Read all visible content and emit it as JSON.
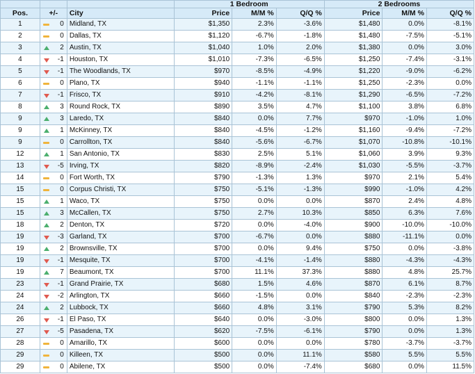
{
  "headers": {
    "pos": "Pos.",
    "change": "+/-",
    "city": "City",
    "group1": "1 Bedroom",
    "group2": "2 Bedrooms",
    "price": "Price",
    "mm": "M/M %",
    "qq": "Q/Q %"
  },
  "colors": {
    "header_bg": "#d6eaf8",
    "row_alt_bg": "#e8f4fb",
    "border": "#a9c3d6",
    "up": "#4caf6e",
    "down": "#e05a4f",
    "flat": "#f0b43c"
  },
  "rows": [
    {
      "pos": "1",
      "dir": "flat",
      "chg": "0",
      "city": "Midland, TX",
      "p1": "$1,350",
      "mm1": "2.3%",
      "qq1": "-3.6%",
      "p2": "$1,480",
      "mm2": "0.0%",
      "qq2": "-8.1%"
    },
    {
      "pos": "2",
      "dir": "flat",
      "chg": "0",
      "city": "Dallas, TX",
      "p1": "$1,120",
      "mm1": "-6.7%",
      "qq1": "-1.8%",
      "p2": "$1,480",
      "mm2": "-7.5%",
      "qq2": "-5.1%"
    },
    {
      "pos": "3",
      "dir": "up",
      "chg": "2",
      "city": "Austin, TX",
      "p1": "$1,040",
      "mm1": "1.0%",
      "qq1": "2.0%",
      "p2": "$1,380",
      "mm2": "0.0%",
      "qq2": "3.0%"
    },
    {
      "pos": "4",
      "dir": "down",
      "chg": "-1",
      "city": "Houston, TX",
      "p1": "$1,010",
      "mm1": "-7.3%",
      "qq1": "-6.5%",
      "p2": "$1,250",
      "mm2": "-7.4%",
      "qq2": "-3.1%"
    },
    {
      "pos": "5",
      "dir": "down",
      "chg": "-1",
      "city": "The Woodlands, TX",
      "p1": "$970",
      "mm1": "-8.5%",
      "qq1": "-4.9%",
      "p2": "$1,220",
      "mm2": "-9.0%",
      "qq2": "-6.2%"
    },
    {
      "pos": "6",
      "dir": "flat",
      "chg": "0",
      "city": "Plano, TX",
      "p1": "$940",
      "mm1": "-1.1%",
      "qq1": "-1.1%",
      "p2": "$1,250",
      "mm2": "-2.3%",
      "qq2": "0.0%"
    },
    {
      "pos": "7",
      "dir": "down",
      "chg": "-1",
      "city": "Frisco, TX",
      "p1": "$910",
      "mm1": "-4.2%",
      "qq1": "-8.1%",
      "p2": "$1,290",
      "mm2": "-6.5%",
      "qq2": "-7.2%"
    },
    {
      "pos": "8",
      "dir": "up",
      "chg": "3",
      "city": "Round Rock, TX",
      "p1": "$890",
      "mm1": "3.5%",
      "qq1": "4.7%",
      "p2": "$1,100",
      "mm2": "3.8%",
      "qq2": "6.8%"
    },
    {
      "pos": "9",
      "dir": "up",
      "chg": "3",
      "city": "Laredo, TX",
      "p1": "$840",
      "mm1": "0.0%",
      "qq1": "7.7%",
      "p2": "$970",
      "mm2": "-1.0%",
      "qq2": "1.0%"
    },
    {
      "pos": "9",
      "dir": "up",
      "chg": "1",
      "city": "McKinney, TX",
      "p1": "$840",
      "mm1": "-4.5%",
      "qq1": "-1.2%",
      "p2": "$1,160",
      "mm2": "-9.4%",
      "qq2": "-7.2%"
    },
    {
      "pos": "9",
      "dir": "flat",
      "chg": "0",
      "city": "Carrollton, TX",
      "p1": "$840",
      "mm1": "-5.6%",
      "qq1": "-6.7%",
      "p2": "$1,070",
      "mm2": "-10.8%",
      "qq2": "-10.1%"
    },
    {
      "pos": "12",
      "dir": "up",
      "chg": "1",
      "city": "San Antonio, TX",
      "p1": "$830",
      "mm1": "2.5%",
      "qq1": "5.1%",
      "p2": "$1,060",
      "mm2": "3.9%",
      "qq2": "9.3%"
    },
    {
      "pos": "13",
      "dir": "down",
      "chg": "-5",
      "city": "Irving, TX",
      "p1": "$820",
      "mm1": "-8.9%",
      "qq1": "-2.4%",
      "p2": "$1,030",
      "mm2": "-5.5%",
      "qq2": "-3.7%"
    },
    {
      "pos": "14",
      "dir": "flat",
      "chg": "0",
      "city": "Fort Worth, TX",
      "p1": "$790",
      "mm1": "-1.3%",
      "qq1": "1.3%",
      "p2": "$970",
      "mm2": "2.1%",
      "qq2": "5.4%"
    },
    {
      "pos": "15",
      "dir": "flat",
      "chg": "0",
      "city": "Corpus Christi, TX",
      "p1": "$750",
      "mm1": "-5.1%",
      "qq1": "-1.3%",
      "p2": "$990",
      "mm2": "-1.0%",
      "qq2": "4.2%"
    },
    {
      "pos": "15",
      "dir": "up",
      "chg": "1",
      "city": "Waco, TX",
      "p1": "$750",
      "mm1": "0.0%",
      "qq1": "0.0%",
      "p2": "$870",
      "mm2": "2.4%",
      "qq2": "4.8%"
    },
    {
      "pos": "15",
      "dir": "up",
      "chg": "3",
      "city": "McCallen, TX",
      "p1": "$750",
      "mm1": "2.7%",
      "qq1": "10.3%",
      "p2": "$850",
      "mm2": "6.3%",
      "qq2": "7.6%"
    },
    {
      "pos": "18",
      "dir": "up",
      "chg": "2",
      "city": "Denton, TX",
      "p1": "$720",
      "mm1": "0.0%",
      "qq1": "-4.0%",
      "p2": "$900",
      "mm2": "-10.0%",
      "qq2": "-10.0%"
    },
    {
      "pos": "19",
      "dir": "down",
      "chg": "-3",
      "city": "Garland, TX",
      "p1": "$700",
      "mm1": "-6.7%",
      "qq1": "0.0%",
      "p2": "$880",
      "mm2": "-11.1%",
      "qq2": "0.0%"
    },
    {
      "pos": "19",
      "dir": "up",
      "chg": "2",
      "city": "Brownsville, TX",
      "p1": "$700",
      "mm1": "0.0%",
      "qq1": "9.4%",
      "p2": "$750",
      "mm2": "0.0%",
      "qq2": "-3.8%"
    },
    {
      "pos": "19",
      "dir": "down",
      "chg": "-1",
      "city": "Mesquite, TX",
      "p1": "$700",
      "mm1": "-4.1%",
      "qq1": "-1.4%",
      "p2": "$880",
      "mm2": "-4.3%",
      "qq2": "-4.3%"
    },
    {
      "pos": "19",
      "dir": "up",
      "chg": "7",
      "city": "Beaumont, TX",
      "p1": "$700",
      "mm1": "11.1%",
      "qq1": "37.3%",
      "p2": "$880",
      "mm2": "4.8%",
      "qq2": "25.7%"
    },
    {
      "pos": "23",
      "dir": "down",
      "chg": "-1",
      "city": "Grand Prairie, TX",
      "p1": "$680",
      "mm1": "1.5%",
      "qq1": "4.6%",
      "p2": "$870",
      "mm2": "6.1%",
      "qq2": "8.7%"
    },
    {
      "pos": "24",
      "dir": "down",
      "chg": "-2",
      "city": "Arlington, TX",
      "p1": "$660",
      "mm1": "-1.5%",
      "qq1": "0.0%",
      "p2": "$840",
      "mm2": "-2.3%",
      "qq2": "-2.3%"
    },
    {
      "pos": "24",
      "dir": "up",
      "chg": "2",
      "city": "Lubbock, TX",
      "p1": "$660",
      "mm1": "4.8%",
      "qq1": "3.1%",
      "p2": "$790",
      "mm2": "5.3%",
      "qq2": "8.2%"
    },
    {
      "pos": "26",
      "dir": "down",
      "chg": "-1",
      "city": "El Paso, TX",
      "p1": "$640",
      "mm1": "0.0%",
      "qq1": "-3.0%",
      "p2": "$800",
      "mm2": "0.0%",
      "qq2": "1.3%"
    },
    {
      "pos": "27",
      "dir": "down",
      "chg": "-5",
      "city": "Pasadena, TX",
      "p1": "$620",
      "mm1": "-7.5%",
      "qq1": "-6.1%",
      "p2": "$790",
      "mm2": "0.0%",
      "qq2": "1.3%"
    },
    {
      "pos": "28",
      "dir": "flat",
      "chg": "0",
      "city": "Amarillo, TX",
      "p1": "$600",
      "mm1": "0.0%",
      "qq1": "0.0%",
      "p2": "$780",
      "mm2": "-3.7%",
      "qq2": "-3.7%"
    },
    {
      "pos": "29",
      "dir": "flat",
      "chg": "0",
      "city": "Killeen, TX",
      "p1": "$500",
      "mm1": "0.0%",
      "qq1": "11.1%",
      "p2": "$580",
      "mm2": "5.5%",
      "qq2": "5.5%"
    },
    {
      "pos": "29",
      "dir": "flat",
      "chg": "0",
      "city": "Abilene, TX",
      "p1": "$500",
      "mm1": "0.0%",
      "qq1": "-7.4%",
      "p2": "$680",
      "mm2": "0.0%",
      "qq2": "11.5%"
    }
  ]
}
